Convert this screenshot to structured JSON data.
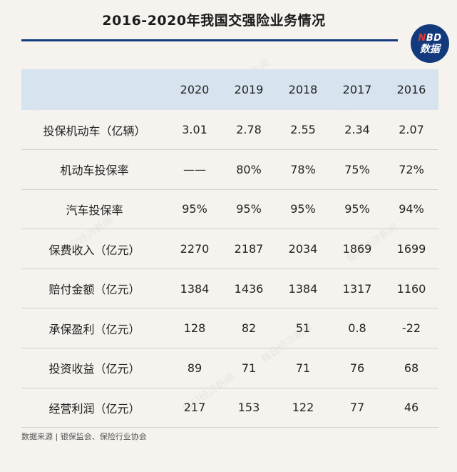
{
  "title": "2016-2020年我国交强险业务情况",
  "logo": {
    "line1_red": "N",
    "line1_rest": "BD",
    "line2": "数据"
  },
  "source": "数据来源 | 银保监会、保险行业协会",
  "watermark": "每日经济新闻",
  "colors": {
    "title_rule": "#123a7d",
    "header_bg": "#d7e4ef",
    "background": "#f6f2ee",
    "logo_accent": "#e23a2e"
  },
  "chart_data": {
    "type": "table",
    "title": "2016-2020年我国交强险业务情况",
    "columns": [
      "",
      "2020",
      "2019",
      "2018",
      "2017",
      "2016"
    ],
    "rows": [
      {
        "label": "投保机动车（亿辆）",
        "values": [
          "3.01",
          "2.78",
          "2.55",
          "2.34",
          "2.07"
        ]
      },
      {
        "label": "机动车投保率",
        "values": [
          "——",
          "80%",
          "78%",
          "75%",
          "72%"
        ]
      },
      {
        "label": "汽车投保率",
        "values": [
          "95%",
          "95%",
          "95%",
          "95%",
          "94%"
        ]
      },
      {
        "label": "保费收入（亿元）",
        "values": [
          "2270",
          "2187",
          "2034",
          "1869",
          "1699"
        ]
      },
      {
        "label": "赔付金额（亿元）",
        "values": [
          "1384",
          "1436",
          "1384",
          "1317",
          "1160"
        ]
      },
      {
        "label": "承保盈利（亿元）",
        "values": [
          "128",
          "82",
          "51",
          "0.8",
          "-22"
        ]
      },
      {
        "label": "投资收益（亿元）",
        "values": [
          "89",
          "71",
          "71",
          "76",
          "68"
        ]
      },
      {
        "label": "经营利润（亿元）",
        "values": [
          "217",
          "153",
          "122",
          "77",
          "46"
        ]
      }
    ]
  }
}
